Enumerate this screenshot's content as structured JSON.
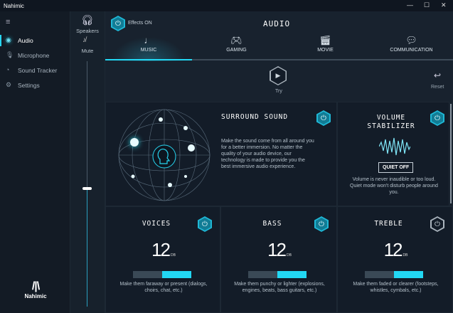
{
  "window": {
    "title": "Nahimic",
    "controls": [
      "—",
      "☐",
      "✕"
    ]
  },
  "sidebar": {
    "menu_icon": "hamburger-icon",
    "items": [
      {
        "label": "Audio",
        "icon": "audio-icon",
        "active": true
      },
      {
        "label": "Microphone",
        "icon": "microphone-icon"
      },
      {
        "label": "Sound Tracker",
        "icon": "sound-tracker-icon"
      },
      {
        "label": "Settings",
        "icon": "settings-icon"
      }
    ],
    "logo_text": "Nahimic"
  },
  "volume": {
    "device": "Speakers",
    "mute_label": "Mute",
    "level_percent": 48
  },
  "header": {
    "effects_label": "Effects ON",
    "title": "AUDIO"
  },
  "tabs": [
    {
      "label": "MUSIC",
      "icon": "music-note-icon",
      "active": true
    },
    {
      "label": "GAMING",
      "icon": "gamepad-icon"
    },
    {
      "label": "MOVIE",
      "icon": "clapperboard-icon"
    },
    {
      "label": "COMMUNICATION",
      "icon": "chat-bubbles-icon"
    }
  ],
  "try": {
    "label": "Try"
  },
  "reset": {
    "label": "Reset"
  },
  "surround": {
    "title": "SURROUND SOUND",
    "on": true,
    "description": "Make the sound come from all around you for a better immersion. No matter the quality of your audio device, our technology is made to provide you the best immersive audio experience."
  },
  "stabilizer": {
    "title_line1": "VOLUME",
    "title_line2": "STABILIZER",
    "on": true,
    "button": "QUIET OFF",
    "description": "Volume is never  inaudible or too loud. Quiet mode won't disturb people around you."
  },
  "effects": [
    {
      "title": "VOICES",
      "on": true,
      "value": "12",
      "unit": "DB",
      "level_percent": 50,
      "description": "Make them faraway or present (dialogs, choirs, chat, etc.)"
    },
    {
      "title": "BASS",
      "on": true,
      "value": "12",
      "unit": "DB",
      "level_percent": 50,
      "description": "Make them punchy or lighter (explosions, engines, beats, bass guitars, etc.)"
    },
    {
      "title": "TREBLE",
      "on": false,
      "value": "12",
      "unit": "DB",
      "level_percent": 50,
      "description": "Make them faded or clearer (footsteps, whistles, cymbals, etc.)"
    }
  ],
  "colors": {
    "accent": "#22d8f4",
    "background": "#18222e",
    "panel": "#131c28"
  }
}
